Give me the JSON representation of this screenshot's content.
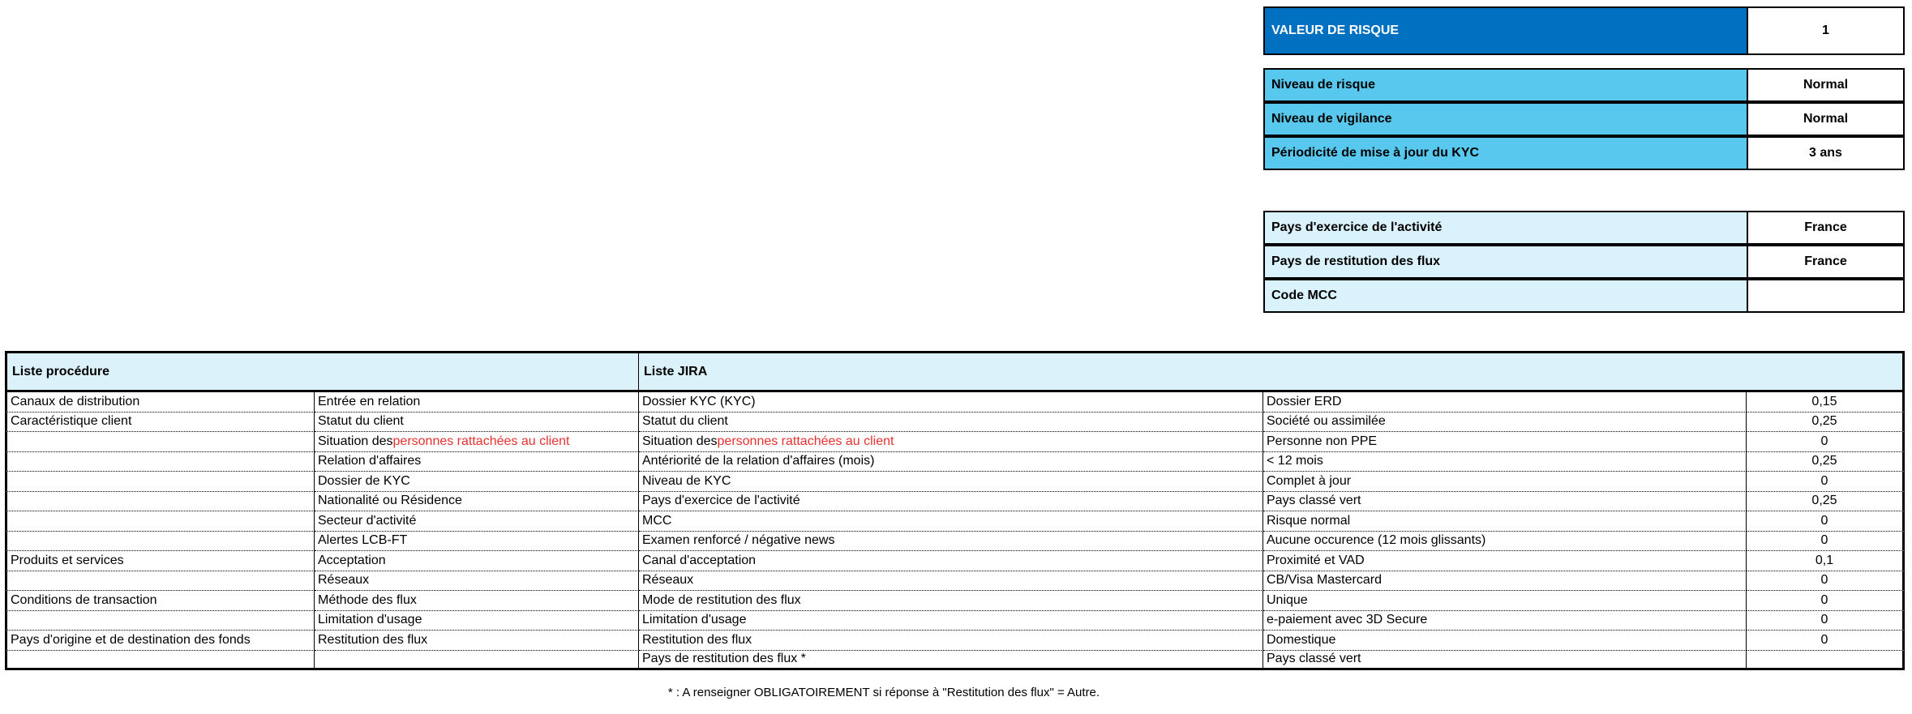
{
  "risk_value": {
    "label": "VALEUR DE RISQUE",
    "value": "1"
  },
  "risk_profile": [
    {
      "label": "Niveau de risque",
      "value": "Normal"
    },
    {
      "label": "Niveau de vigilance",
      "value": "Normal"
    },
    {
      "label": "Périodicité de mise à jour du KYC",
      "value": "3 ans"
    }
  ],
  "country_info": [
    {
      "label": "Pays d'exercice de l'activité",
      "value": "France"
    },
    {
      "label": "Pays de restitution des flux",
      "value": "France"
    },
    {
      "label": "Code MCC",
      "value": null
    }
  ],
  "table": {
    "headers": [
      "Liste procédure",
      "Liste JIRA"
    ],
    "rows": [
      [
        "Canaux de distribution",
        "Entrée en relation",
        "Dossier KYC (KYC)",
        "Dossier ERD",
        "0,15"
      ],
      [
        "Caractéristique client",
        "Statut du client",
        "Statut du client",
        "Société ou assimilée",
        "0,25"
      ],
      [
        null,
        [
          "Situation des ",
          "personnes rattachées au client"
        ],
        [
          "Situation des ",
          "personnes rattachées au client"
        ],
        "Personne non PPE",
        "0"
      ],
      [
        null,
        "Relation d'affaires",
        "Antériorité de la relation d'affaires (mois)",
        "< 12 mois",
        "0,25"
      ],
      [
        null,
        "Dossier de KYC",
        "Niveau de KYC",
        "Complet à jour",
        "0"
      ],
      [
        null,
        "Nationalité ou Résidence",
        "Pays d'exercice de l'activité",
        "Pays classé vert",
        "0,25"
      ],
      [
        null,
        "Secteur d'activité",
        "MCC",
        "Risque normal",
        "0"
      ],
      [
        null,
        "Alertes LCB-FT",
        "Examen renforcé / négative news",
        "Aucune occurence (12 mois glissants)",
        "0"
      ],
      [
        "Produits et services",
        "Acceptation",
        "Canal d'acceptation",
        "Proximité et VAD",
        "0,1"
      ],
      [
        null,
        "Réseaux",
        "Réseaux",
        "CB/Visa Mastercard",
        "0"
      ],
      [
        "Conditions de transaction",
        "Méthode des flux",
        "Mode de restitution des flux",
        "Unique",
        "0"
      ],
      [
        null,
        "Limitation d'usage",
        "Limitation d'usage",
        "e-paiement avec 3D Secure",
        "0"
      ],
      [
        "Pays d'origine et de destination des fonds",
        "Restitution des flux",
        "Restitution des flux",
        "Domestique",
        "0"
      ],
      [
        null,
        null,
        "Pays de restitution des flux *",
        "Pays classé vert",
        null
      ]
    ]
  },
  "footnote": "* : A renseigner OBLIGATOIREMENT si réponse à \"Restitution des flux\" = Autre."
}
